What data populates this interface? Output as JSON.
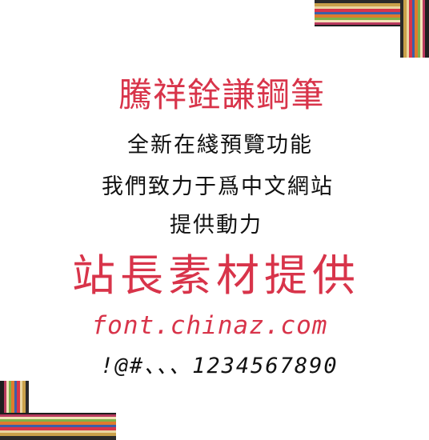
{
  "sample": {
    "title": "騰祥銓謙鋼筆",
    "line1": "全新在綫預覽功能",
    "line2": "我們致力于爲中文網站",
    "line3": "提供動力",
    "big": "站長素材提供",
    "url": "font.chinaz.com",
    "chars": "!@#、、、1234567890"
  },
  "colors": {
    "accent": "#d8344a",
    "text": "#111111",
    "background": "#ffffff",
    "frame_stripes": [
      "#2a2a2a",
      "#c9a14a",
      "#e9d6a0",
      "#d8344a",
      "#3b5fa8",
      "#e07a2e",
      "#7fb24a",
      "#f2e2b8",
      "#b83a5e",
      "#1e1e1e"
    ]
  },
  "decor": {
    "top_right": "striped-frame-corner-icon",
    "bottom_left": "striped-frame-corner-icon"
  }
}
